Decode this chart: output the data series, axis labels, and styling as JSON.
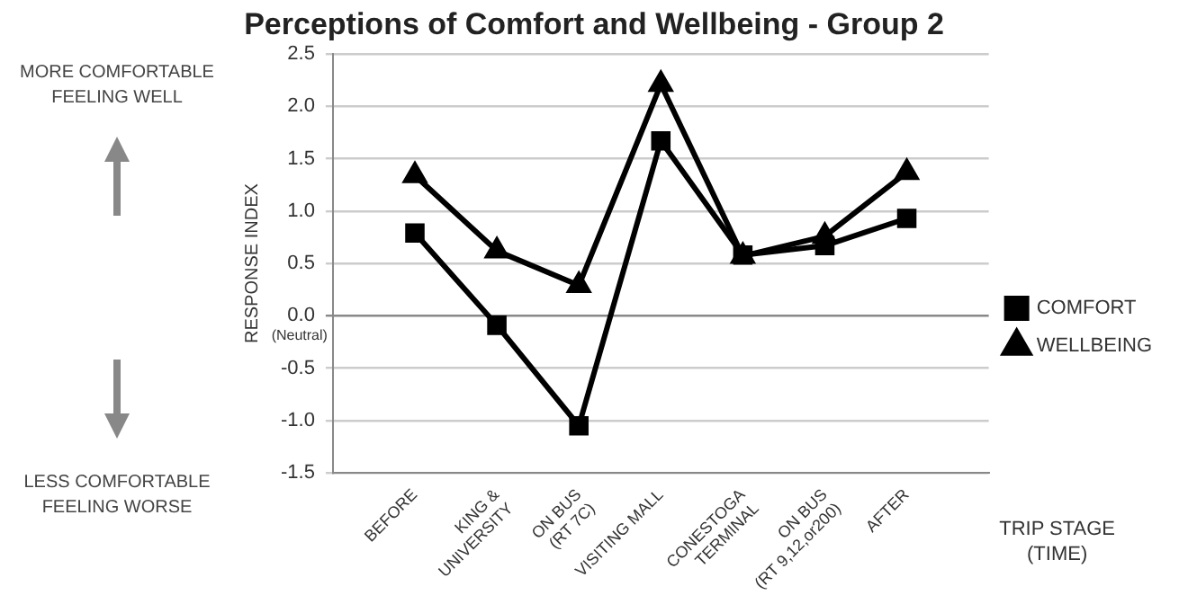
{
  "chart_data": {
    "type": "line",
    "title": "Perceptions of Comfort and Wellbeing - Group 2",
    "ylabel": "RESPONSE INDEX",
    "xlabel": "TRIP STAGE (TIME)",
    "categories": [
      null,
      "BEFORE",
      "KING & UNIVERSITY",
      "ON BUS (RT 7C)",
      "VISITING MALL",
      "CONESTOGA TERMINAL",
      "ON BUS (RT 9,12,or200)",
      "AFTER",
      null
    ],
    "series": [
      {
        "name": "COMFORT",
        "color": "#000000",
        "marker": "square",
        "values": [
          null,
          0.79,
          -0.09,
          -1.05,
          1.67,
          0.58,
          0.67,
          0.93,
          null
        ]
      },
      {
        "name": "WELLBEING",
        "color": "#000000",
        "marker": "triangle",
        "values": [
          null,
          1.34,
          0.62,
          0.29,
          2.21,
          0.57,
          0.76,
          1.37,
          null
        ]
      }
    ],
    "ylim": [
      -1.5,
      2.5
    ],
    "yticks": [
      {
        "value": -1.5,
        "label": "-1.5"
      },
      {
        "value": -1,
        "label": "-1.0"
      },
      {
        "value": -0.5,
        "label": "-0.5"
      },
      {
        "value": 0,
        "label": "0.0"
      },
      {
        "value": 0.5,
        "label": "0.5"
      },
      {
        "value": 1,
        "label": "1.0"
      },
      {
        "value": 1.5,
        "label": "1.5"
      },
      {
        "value": 2,
        "label": "2.0"
      },
      {
        "value": 2.5,
        "label": "2.5"
      }
    ],
    "grid": "y",
    "legend": "right",
    "line_style": "solid",
    "annotations": [
      "(Neutral)",
      "MORE COMFORTABLE FEELING WELL",
      "LESS COMFORTABLE FEELING WORSE"
    ]
  }
}
